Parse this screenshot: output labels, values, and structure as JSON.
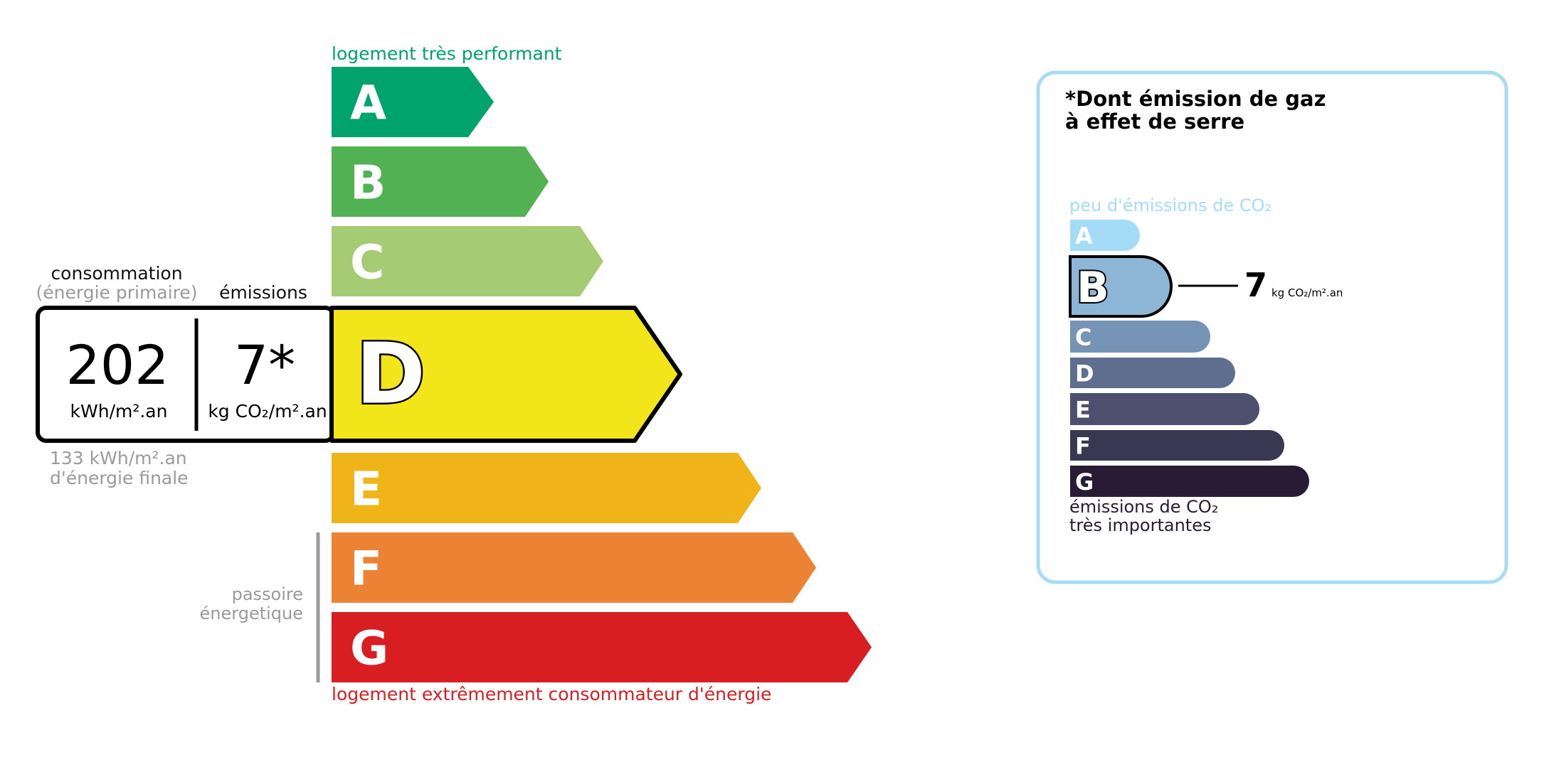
{
  "energy": {
    "top_label": "logement très performant",
    "bottom_label": "logement extrêmement consommateur d'énergie",
    "passoire_label_1": "passoire",
    "passoire_label_2": "énergetique",
    "current_class": "D",
    "classes": [
      {
        "letter": "A",
        "color": "#00a36c"
      },
      {
        "letter": "B",
        "color": "#52b153"
      },
      {
        "letter": "C",
        "color": "#a5cc74"
      },
      {
        "letter": "D",
        "color": "#f2e61b"
      },
      {
        "letter": "E",
        "color": "#f0b418"
      },
      {
        "letter": "F",
        "color": "#ec8234"
      },
      {
        "letter": "G",
        "color": "#d81e20"
      }
    ],
    "consumption_label": "consommation",
    "consumption_sublabel": "(énergie primaire)",
    "emissions_label": "émissions",
    "consumption_value": "202",
    "consumption_unit": "kWh/m².an",
    "emissions_value": "7*",
    "emissions_unit": "kg CO₂/m².an",
    "final_energy_1": "133 kWh/m².an",
    "final_energy_2": "d'énergie finale",
    "top_color": "#00a36c",
    "bottom_color": "#d81e20"
  },
  "ges": {
    "title_1": "*Dont émission de gaz",
    "title_2": "à effet de serre",
    "top_label": "peu d'émissions de CO₂",
    "bottom_label_1": "émissions de CO₂",
    "bottom_label_2": "très importantes",
    "current_class": "B",
    "value": "7",
    "unit": "kg CO₂/m².an",
    "border_color": "#a6dcf5",
    "classes": [
      {
        "letter": "A",
        "color": "#a4dbf7"
      },
      {
        "letter": "B",
        "color": "#8db6d6"
      },
      {
        "letter": "C",
        "color": "#7593b4"
      },
      {
        "letter": "D",
        "color": "#5f6e8e"
      },
      {
        "letter": "E",
        "color": "#4c506e"
      },
      {
        "letter": "F",
        "color": "#3a3753"
      },
      {
        "letter": "G",
        "color": "#2a1b35"
      }
    ]
  }
}
